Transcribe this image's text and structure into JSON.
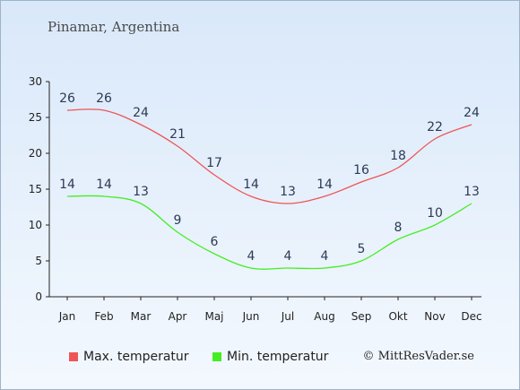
{
  "header": {
    "title": "Pinamar, Argentina"
  },
  "footer": {
    "copyright": "© MittResVader.se"
  },
  "chart_data": {
    "type": "line",
    "categories": [
      "Jan",
      "Feb",
      "Mar",
      "Apr",
      "Maj",
      "Jun",
      "Jul",
      "Aug",
      "Sep",
      "Okt",
      "Nov",
      "Dec"
    ],
    "series": [
      {
        "name": "Max. temperatur",
        "color": "#ee5555",
        "values": [
          26,
          26,
          24,
          21,
          17,
          14,
          13,
          14,
          16,
          18,
          22,
          24
        ]
      },
      {
        "name": "Min. temperatur",
        "color": "#44ee22",
        "values": [
          14,
          14,
          13,
          9,
          6,
          4,
          4,
          4,
          5,
          8,
          10,
          13
        ]
      }
    ],
    "yticks": [
      0,
      5,
      10,
      15,
      20,
      25,
      30
    ],
    "ylim": [
      0,
      30
    ],
    "grid": false,
    "legend": "bottom"
  }
}
